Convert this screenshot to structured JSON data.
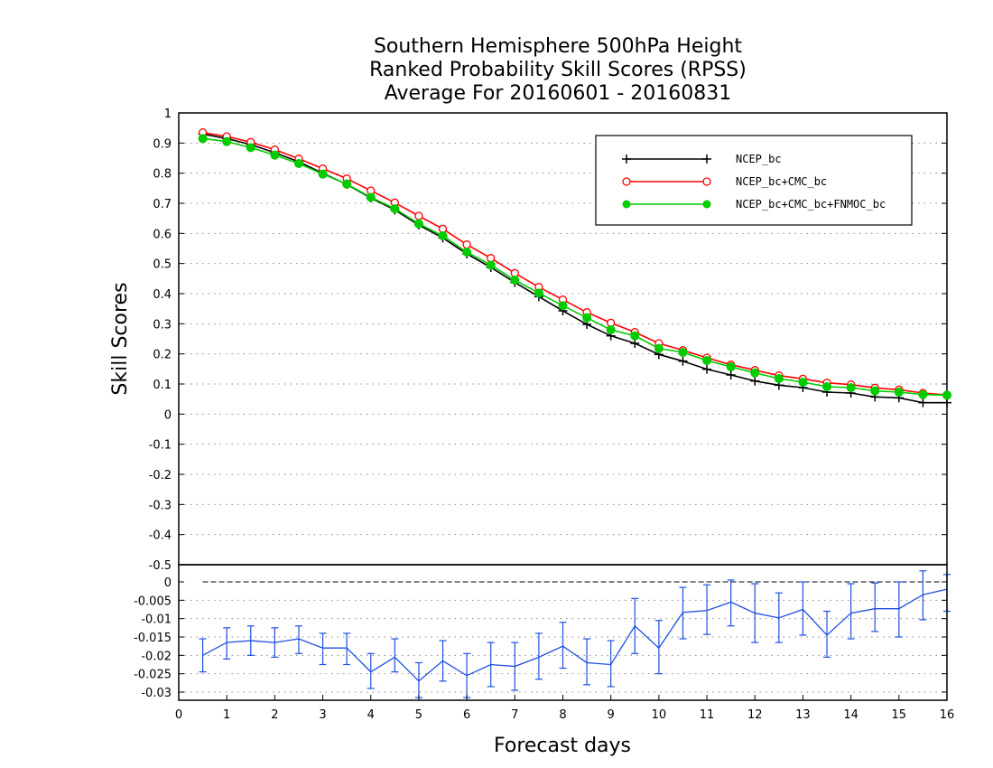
{
  "chart_data": [
    {
      "type": "line",
      "title_lines": [
        "Southern Hemisphere 500hPa Height",
        "Ranked Probability Skill Scores (RPSS)",
        "Average For 20160601 - 20160831"
      ],
      "ylabel": "Skill Scores",
      "xlabel": "Forecast days",
      "xlim": [
        0,
        16
      ],
      "ylim": [
        -0.5,
        1
      ],
      "x_ticks": [
        "0",
        "1",
        "2",
        "3",
        "4",
        "5",
        "6",
        "7",
        "8",
        "9",
        "10",
        "11",
        "12",
        "13",
        "14",
        "15",
        "16"
      ],
      "y_ticks": [
        "1",
        "0.9",
        "0.8",
        "0.7",
        "0.6",
        "0.5",
        "0.4",
        "0.3",
        "0.2",
        "0.1",
        "0",
        "-0.1",
        "-0.2",
        "-0.3",
        "-0.4",
        "-0.5"
      ],
      "y_tick_values": [
        1,
        0.9,
        0.8,
        0.7,
        0.6,
        0.5,
        0.4,
        0.3,
        0.2,
        0.1,
        0,
        -0.1,
        -0.2,
        -0.3,
        -0.4,
        -0.5
      ],
      "grid": true,
      "legend_position": "top-right",
      "x": [
        0.5,
        1,
        1.5,
        2,
        2.5,
        3,
        3.5,
        4,
        4.5,
        5,
        5.5,
        6,
        6.5,
        7,
        7.5,
        8,
        8.5,
        9,
        9.5,
        10,
        10.5,
        11,
        11.5,
        12,
        12.5,
        13,
        13.5,
        14,
        14.5,
        15,
        15.5,
        16
      ],
      "series": [
        {
          "name": "NCEP_bc",
          "color": "#000000",
          "marker": "plus",
          "values": [
            0.93,
            0.915,
            0.895,
            0.868,
            0.838,
            0.8,
            0.763,
            0.718,
            0.678,
            0.628,
            0.585,
            0.532,
            0.487,
            0.437,
            0.39,
            0.343,
            0.298,
            0.26,
            0.235,
            0.198,
            0.176,
            0.149,
            0.13,
            0.11,
            0.096,
            0.088,
            0.073,
            0.07,
            0.057,
            0.054,
            0.038,
            0.038
          ]
        },
        {
          "name": "NCEP_bc+CMC_bc",
          "color": "#ff0000",
          "marker": "open-circle",
          "values": [
            0.935,
            0.922,
            0.903,
            0.878,
            0.848,
            0.815,
            0.782,
            0.742,
            0.702,
            0.658,
            0.615,
            0.563,
            0.518,
            0.468,
            0.422,
            0.38,
            0.338,
            0.303,
            0.272,
            0.235,
            0.212,
            0.187,
            0.164,
            0.146,
            0.128,
            0.117,
            0.104,
            0.098,
            0.087,
            0.081,
            0.07,
            0.064
          ]
        },
        {
          "name": "NCEP_bc+CMC_bc+FNMOC_bc",
          "color": "#00cc00",
          "marker": "filled-circle",
          "values": [
            0.915,
            0.905,
            0.885,
            0.86,
            0.832,
            0.797,
            0.764,
            0.72,
            0.682,
            0.632,
            0.592,
            0.538,
            0.495,
            0.445,
            0.402,
            0.36,
            0.32,
            0.28,
            0.26,
            0.218,
            0.205,
            0.178,
            0.157,
            0.137,
            0.118,
            0.106,
            0.091,
            0.088,
            0.077,
            0.073,
            0.065,
            0.063
          ]
        }
      ]
    },
    {
      "type": "line",
      "title": "",
      "xlim": [
        0,
        16
      ],
      "ylim": [
        -0.033,
        0
      ],
      "y_ticks": [
        "0",
        "-0.005",
        "-0.01",
        "-0.015",
        "-0.02",
        "-0.025",
        "-0.03"
      ],
      "y_tick_values": [
        0,
        -0.005,
        -0.01,
        -0.015,
        -0.02,
        -0.025,
        -0.03
      ],
      "grid": true,
      "x": [
        0.5,
        1,
        1.5,
        2,
        2.5,
        3,
        3.5,
        4,
        4.5,
        5,
        5.5,
        6,
        6.5,
        7,
        7.5,
        8,
        8.5,
        9,
        9.5,
        10,
        10.5,
        11,
        11.5,
        12,
        12.5,
        13,
        13.5,
        14,
        14.5,
        15,
        15.5,
        16
      ],
      "series": [
        {
          "name": "",
          "color": "#1f4fe0",
          "values": [
            -0.02,
            -0.0165,
            -0.016,
            -0.0165,
            -0.0155,
            -0.018,
            -0.018,
            -0.0245,
            -0.0205,
            -0.027,
            -0.0215,
            -0.0255,
            -0.0225,
            -0.023,
            -0.0205,
            -0.0175,
            -0.022,
            -0.0225,
            -0.012,
            -0.018,
            -0.0083,
            -0.0078,
            -0.0055,
            -0.0085,
            -0.0098,
            -0.0075,
            -0.0145,
            -0.0085,
            -0.0073,
            -0.0073,
            -0.0035,
            -0.002
          ],
          "error_low": [
            -0.0245,
            -0.021,
            -0.02,
            -0.0205,
            -0.0195,
            -0.0225,
            -0.0225,
            -0.029,
            -0.0245,
            -0.0315,
            -0.027,
            -0.0315,
            -0.0285,
            -0.0295,
            -0.0265,
            -0.0235,
            -0.028,
            -0.0285,
            -0.0195,
            -0.025,
            -0.0155,
            -0.0143,
            -0.012,
            -0.0165,
            -0.0165,
            -0.0145,
            -0.0205,
            -0.0155,
            -0.0135,
            -0.015,
            -0.0103,
            -0.008
          ],
          "error_high": [
            -0.0155,
            -0.0125,
            -0.012,
            -0.0125,
            -0.012,
            -0.014,
            -0.014,
            -0.0195,
            -0.0155,
            -0.022,
            -0.016,
            -0.0195,
            -0.0165,
            -0.0165,
            -0.014,
            -0.011,
            -0.0155,
            -0.016,
            -0.0045,
            -0.0105,
            -0.0015,
            -0.0008,
            0.0005,
            -0.0005,
            -0.003,
            0,
            -0.008,
            -0.0005,
            -0.0003,
            0,
            0.003,
            0.002
          ]
        }
      ]
    }
  ]
}
